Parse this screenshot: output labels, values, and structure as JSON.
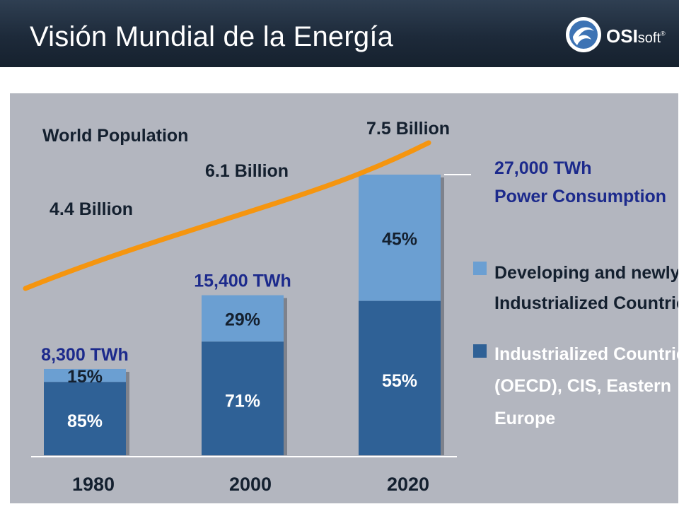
{
  "header": {
    "title": "Visión Mundial de la Energía",
    "logo_bold": "OSI",
    "logo_light": "soft",
    "logo_mark": "®"
  },
  "colors": {
    "header_bg": "#1d2a3a",
    "plot_bg": "#b3b6bf",
    "dark_blue": "#2f6196",
    "light_blue": "#6b9fd2",
    "curve": "#f5950f",
    "label_blue": "#1c2a8c"
  },
  "chart_data": {
    "type": "bar",
    "stacked": true,
    "categories": [
      "1980",
      "2000",
      "2020"
    ],
    "totals": [
      8300,
      15400,
      27000
    ],
    "total_labels": [
      "8,300 TWh",
      "15,400 TWh",
      "27,000 TWh"
    ],
    "total_label_suffix": "Power Consumption",
    "series": [
      {
        "name": "Industrialized Countries (OECD), CIS, Eastern Europe",
        "percent": [
          85,
          71,
          55
        ],
        "labels": [
          "85%",
          "71%",
          "55%"
        ],
        "color": "#2f6196"
      },
      {
        "name": "Developing and newly Industrialized Countries",
        "percent": [
          15,
          29,
          45
        ],
        "labels": [
          "15%",
          "29%",
          "45%"
        ],
        "color": "#6b9fd2"
      }
    ],
    "legend": [
      {
        "lines": [
          "Developing and newly",
          "Industrialized Countries"
        ],
        "color": "#6b9fd2"
      },
      {
        "lines": [
          "Industrialized Countries",
          "(OECD), CIS, Eastern",
          "Europe"
        ],
        "color": "#2f6196"
      }
    ],
    "legend_position": "right",
    "population": {
      "title": "World Population",
      "points": [
        {
          "year": "1980",
          "label": "4.4 Billion"
        },
        {
          "year": "2000",
          "label": "6.1 Billion"
        },
        {
          "year": "2020",
          "label": "7.5 Billion"
        }
      ]
    },
    "grid": false
  }
}
